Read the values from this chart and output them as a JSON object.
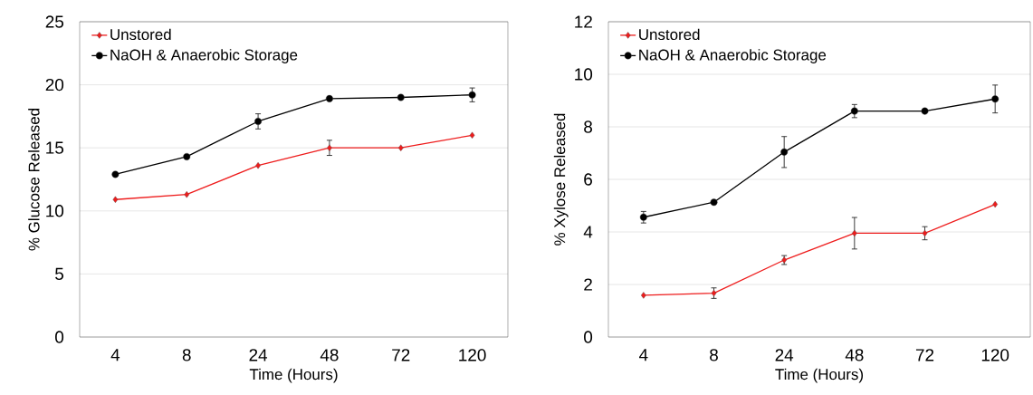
{
  "chart_data": [
    {
      "type": "line",
      "xlabel": "Time (Hours)",
      "ylabel": "% Glucose Released",
      "categories": [
        "4",
        "8",
        "24",
        "48",
        "72",
        "120"
      ],
      "ylim": [
        0,
        25
      ],
      "yticks": [
        0,
        5,
        10,
        15,
        20,
        25
      ],
      "grid": "y",
      "legend": "top left",
      "series": [
        {
          "name": "Unstored",
          "color": "#ee1c1c",
          "marker": "diamond",
          "values": [
            10.9,
            11.3,
            13.6,
            15.0,
            15.0,
            16.0
          ],
          "errors": [
            null,
            null,
            null,
            0.6,
            null,
            null
          ]
        },
        {
          "name": "NaOH & Anaerobic Storage",
          "color": "#000000",
          "marker": "circle",
          "values": [
            12.9,
            14.3,
            17.1,
            18.9,
            19.0,
            19.2
          ],
          "errors": [
            null,
            null,
            0.6,
            null,
            null,
            0.55
          ]
        }
      ]
    },
    {
      "type": "line",
      "xlabel": "Time (Hours)",
      "ylabel": "% Xylose Released",
      "categories": [
        "4",
        "8",
        "24",
        "48",
        "72",
        "120"
      ],
      "ylim": [
        0,
        12
      ],
      "yticks": [
        0,
        2,
        4,
        6,
        8,
        10,
        12
      ],
      "grid": "y",
      "legend": "top left",
      "series": [
        {
          "name": "Unstored",
          "color": "#ee1c1c",
          "marker": "diamond",
          "values": [
            1.59,
            1.67,
            2.93,
            3.95,
            3.95,
            5.05
          ],
          "errors": [
            null,
            0.2,
            0.17,
            0.6,
            0.25,
            null
          ]
        },
        {
          "name": "NaOH & Anaerobic Storage",
          "color": "#000000",
          "marker": "circle",
          "values": [
            4.56,
            5.13,
            7.04,
            8.6,
            8.6,
            9.06
          ],
          "errors": [
            0.22,
            null,
            0.59,
            0.25,
            null,
            0.53
          ]
        }
      ]
    }
  ]
}
